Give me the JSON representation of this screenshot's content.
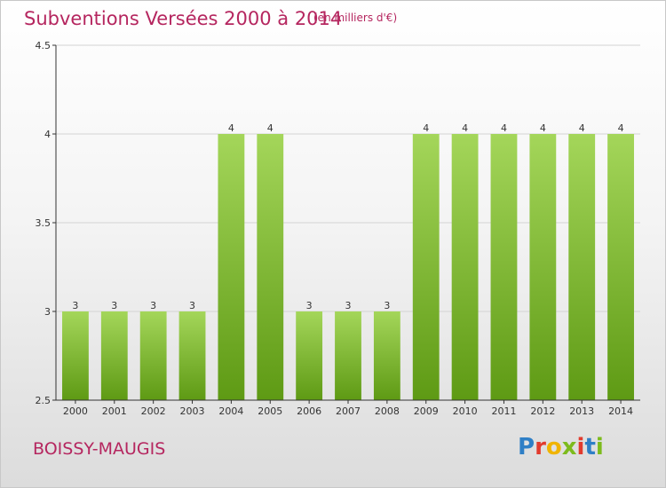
{
  "title": "Subventions Versées 2000 à 2014",
  "subtitle": "(en milliers d'€)",
  "commune": "BOISSY-MAUGIS",
  "logo": {
    "text": "Proxiti",
    "colors": [
      "#2f7fc6",
      "#e23b2e",
      "#f0b400",
      "#7dbb1d",
      "#e23b2e",
      "#2f7fc6",
      "#7dbb1d"
    ]
  },
  "chart_data": {
    "type": "bar",
    "title": "Subventions Versées 2000 à 2014",
    "categories": [
      "2000",
      "2001",
      "2002",
      "2003",
      "2004",
      "2005",
      "2006",
      "2007",
      "2008",
      "2009",
      "2010",
      "2011",
      "2012",
      "2013",
      "2014"
    ],
    "values": [
      3,
      3,
      3,
      3,
      4,
      4,
      3,
      3,
      3,
      4,
      4,
      4,
      4,
      4,
      4
    ],
    "data_labels": [
      "3",
      "3",
      "3",
      "3",
      "4",
      "4",
      "3",
      "3",
      "3",
      "4",
      "4",
      "4",
      "4",
      "4",
      "4"
    ],
    "yticks": [
      "2.5",
      "3",
      "3.5",
      "4",
      "4.5"
    ],
    "ylim": [
      2.5,
      4.5
    ],
    "xlabel": "",
    "ylabel": "",
    "grid": true,
    "bar_color_top": "#a4d65a",
    "bar_color_bottom": "#5e9a14"
  }
}
